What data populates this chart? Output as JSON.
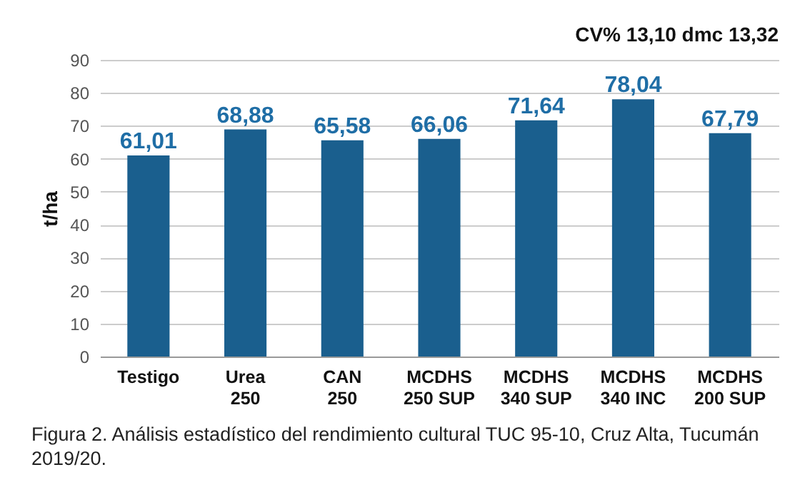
{
  "chart_data": {
    "type": "bar",
    "ylabel": "t/ha",
    "categories": [
      "Testigo",
      "Urea 250",
      "CAN 250",
      "MCDHS 250 SUP",
      "MCDHS 340 SUP",
      "MCDHS 340 INC",
      "MCDHS 200 SUP"
    ],
    "values": [
      61.01,
      68.88,
      65.58,
      66.06,
      71.64,
      78.04,
      67.79
    ],
    "value_labels": [
      "61,01",
      "68,88",
      "65,58",
      "66,06",
      "71,64",
      "78,04",
      "67,79"
    ],
    "color": "#1a5f8e",
    "ylim": [
      0,
      90
    ],
    "yticks": [
      0,
      10,
      20,
      30,
      40,
      50,
      60,
      70,
      80,
      90
    ],
    "grid": "y",
    "annotations": [
      "CV% 13,10 dmc 13,32",
      "Figura 2. Análisis estadístico del rendimiento cultural TUC 95-10, Cruz Alta, Tucumán 2019/20."
    ]
  }
}
